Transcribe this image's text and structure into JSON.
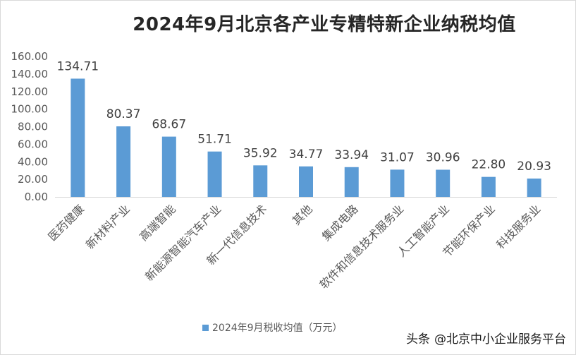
{
  "chart_data": {
    "type": "bar",
    "title": "2024年9月北京各产业专精特新企业纳税均值",
    "categories": [
      "医药健康",
      "新材料产业",
      "高端智能",
      "新能源智能汽车产业",
      "新一代信息技术",
      "其他",
      "集成电路",
      "软件和信息技术服务业",
      "人工智能产业",
      "节能环保产业",
      "科技服务业"
    ],
    "series": [
      {
        "name": "2024年9月税收均值（万元）",
        "values": [
          134.71,
          80.37,
          68.67,
          51.71,
          35.92,
          34.77,
          33.94,
          31.07,
          30.96,
          22.8,
          20.93
        ],
        "value_labels": [
          "134.71",
          "80.37",
          "68.67",
          "51.71",
          "35.92",
          "34.77",
          "33.94",
          "31.07",
          "30.96",
          "22.80",
          "20.93"
        ],
        "color": "#5b9bd5"
      }
    ],
    "ylim": [
      0,
      160
    ],
    "yticks": [
      "0.00",
      "20.00",
      "40.00",
      "60.00",
      "80.00",
      "100.00",
      "120.00",
      "140.00",
      "160.00"
    ],
    "ytick_values": [
      0,
      20,
      40,
      60,
      80,
      100,
      120,
      140,
      160
    ],
    "xlabel": "",
    "ylabel": "",
    "grid": false,
    "legend_position": "bottom",
    "axis_color": "#d9d9d9",
    "text_color": "#595959"
  },
  "watermark": {
    "prefix": "头条",
    "handle": "@北京中小企业服务平台"
  }
}
